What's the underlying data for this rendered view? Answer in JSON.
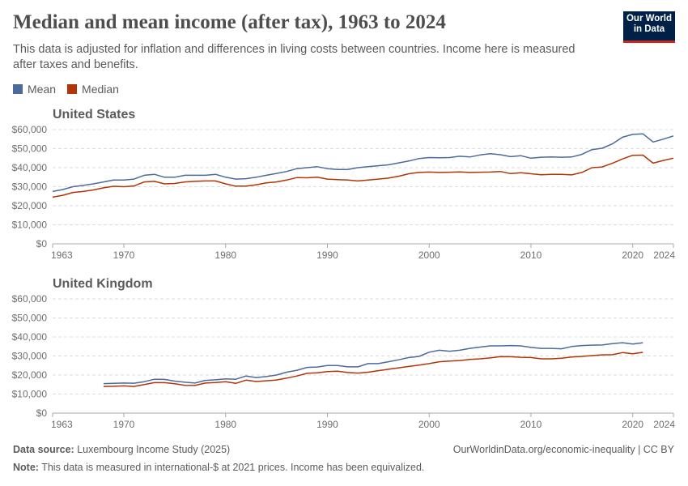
{
  "title": "Median and mean income (after tax), 1963 to 2024",
  "subtitle": "This data is adjusted for inflation and differences in living costs between countries. Income here is measured after taxes and benefits.",
  "logo": {
    "line1": "Our World",
    "line2": "in Data",
    "bg_color": "#002147",
    "accent_color": "#ce261e"
  },
  "legend": [
    {
      "label": "Mean",
      "color": "#4c6a9c"
    },
    {
      "label": "Median",
      "color": "#b13507"
    }
  ],
  "footer": {
    "source_label": "Data source:",
    "source": "Luxembourg Income Study (2025)",
    "note_label": "Note:",
    "note": "This data is measured in international-$ at 2021 prices. Income has been equivalized.",
    "url": "OurWorldinData.org/economic-inequality | CC BY"
  },
  "chart_data": [
    {
      "type": "line",
      "title": "United States",
      "xlim": [
        1963,
        2024
      ],
      "ylim": [
        0,
        60000
      ],
      "xticks": [
        1963,
        1970,
        1980,
        1990,
        2000,
        2010,
        2020,
        2024
      ],
      "yticks": [
        0,
        10000,
        20000,
        30000,
        40000,
        50000,
        60000
      ],
      "ytick_labels": [
        "$0",
        "$10,000",
        "$20,000",
        "$30,000",
        "$40,000",
        "$50,000",
        "$60,000"
      ],
      "grid": true,
      "x_start": 1963,
      "series": [
        {
          "name": "Mean",
          "color": "#4c6a9c",
          "values": [
            27500,
            28500,
            30000,
            30700,
            31500,
            32500,
            33500,
            33500,
            34000,
            36000,
            36500,
            35000,
            35000,
            36000,
            36000,
            36000,
            36500,
            35000,
            34000,
            34200,
            35000,
            36000,
            37000,
            38000,
            39500,
            40000,
            40500,
            39500,
            39000,
            39000,
            40000,
            40500,
            41000,
            41500,
            42500,
            43500,
            44800,
            45300,
            45200,
            45300,
            46000,
            45600,
            46700,
            47300,
            46800,
            45800,
            46300,
            45000,
            45500,
            45600,
            45500,
            45600,
            47000,
            49500,
            50200,
            52500,
            56000,
            57500,
            57800,
            53500,
            55000,
            56700
          ]
        },
        {
          "name": "Median",
          "color": "#b13507",
          "values": [
            24500,
            25500,
            27000,
            27500,
            28300,
            29400,
            30200,
            30000,
            30400,
            32500,
            32800,
            31500,
            31700,
            32500,
            32800,
            33000,
            33000,
            31500,
            30300,
            30300,
            31000,
            32000,
            32500,
            33500,
            34800,
            34700,
            35000,
            34000,
            33700,
            33500,
            33000,
            33500,
            34000,
            34500,
            35500,
            36800,
            37500,
            37700,
            37500,
            37600,
            37800,
            37500,
            37600,
            37700,
            38000,
            36900,
            37300,
            36800,
            36300,
            36500,
            36500,
            36200,
            37500,
            40000,
            40400,
            42300,
            44600,
            46500,
            46600,
            42400,
            43800,
            45000
          ]
        }
      ]
    },
    {
      "type": "line",
      "title": "United Kingdom",
      "xlim": [
        1963,
        2024
      ],
      "ylim": [
        0,
        60000
      ],
      "xticks": [
        1963,
        1970,
        1980,
        1990,
        2000,
        2010,
        2020,
        2024
      ],
      "yticks": [
        0,
        10000,
        20000,
        30000,
        40000,
        50000,
        60000
      ],
      "ytick_labels": [
        "$0",
        "$10,000",
        "$20,000",
        "$30,000",
        "$40,000",
        "$50,000",
        "$60,000"
      ],
      "grid": true,
      "x_start": 1968,
      "series": [
        {
          "name": "Mean",
          "color": "#4c6a9c",
          "values": [
            15500,
            15600,
            15800,
            15700,
            16500,
            17800,
            17700,
            16800,
            16200,
            15800,
            17200,
            17500,
            18000,
            17800,
            19500,
            18700,
            19200,
            20000,
            21500,
            22500,
            24000,
            24200,
            25000,
            25000,
            24300,
            24300,
            26000,
            26000,
            27000,
            28000,
            29200,
            29800,
            32000,
            33000,
            32500,
            33000,
            34000,
            34700,
            35300,
            35300,
            35500,
            35300,
            34500,
            34000,
            34000,
            33800,
            35000,
            35500,
            35700,
            35800,
            36500,
            37000,
            36300,
            37000
          ]
        },
        {
          "name": "Median",
          "color": "#b13507",
          "values": [
            14000,
            14100,
            14300,
            14000,
            15000,
            16000,
            16000,
            15400,
            14600,
            14500,
            15800,
            16100,
            16500,
            15600,
            17300,
            16600,
            17000,
            17400,
            18400,
            19500,
            20900,
            21200,
            21800,
            22000,
            21300,
            21000,
            21500,
            22300,
            23000,
            23800,
            24500,
            25200,
            26000,
            27000,
            27300,
            27600,
            28200,
            28500,
            29000,
            29700,
            29600,
            29300,
            29200,
            28500,
            28500,
            28800,
            29500,
            29800,
            30200,
            30600,
            30700,
            31800,
            31200,
            31900
          ]
        }
      ]
    }
  ]
}
